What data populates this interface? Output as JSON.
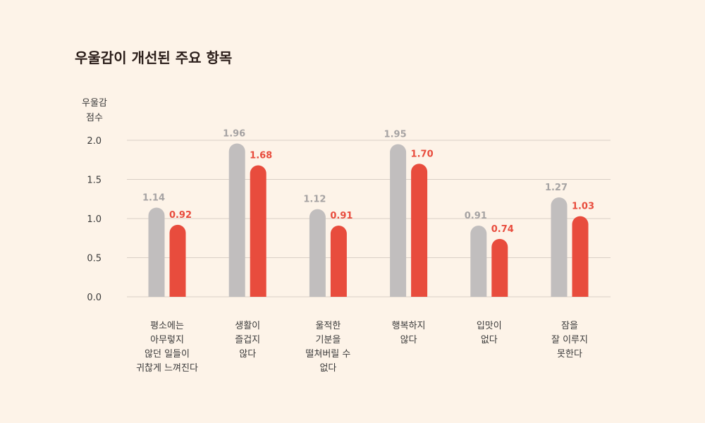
{
  "chart_data": {
    "type": "bar",
    "title": "우울감이 개선된 주요 항목",
    "ylabel": [
      "우울감",
      "점수"
    ],
    "ylim": [
      0,
      2.0
    ],
    "yticks": [
      "2.0",
      "1.5",
      "1.0",
      "0.5",
      "0.0"
    ],
    "grid": true,
    "categories": [
      [
        "평소에는",
        "아무렇지",
        "않던 일들이",
        "귀찮게 느껴진다"
      ],
      [
        "생활이",
        "즐겁지",
        "않다"
      ],
      [
        "울적한",
        "기분을",
        "떨쳐버릴 수",
        "없다"
      ],
      [
        "행복하지",
        "않다"
      ],
      [
        "입맛이",
        "없다"
      ],
      [
        "잠을",
        "잘 이루지",
        "못한다"
      ]
    ],
    "series": [
      {
        "values": [
          1.14,
          1.96,
          1.12,
          1.95,
          0.91,
          1.27
        ],
        "labels": [
          "1.14",
          "1.96",
          "1.12",
          "1.95",
          "0.91",
          "1.27"
        ],
        "color": "#c1bebe",
        "label_color": "#a6a3a3"
      },
      {
        "values": [
          0.92,
          1.68,
          0.91,
          1.7,
          0.74,
          1.03
        ],
        "labels": [
          "0.92",
          "1.68",
          "0.91",
          "1.70",
          "0.74",
          "1.03"
        ],
        "color": "#e84c3d",
        "label_color": "#e84c3d"
      }
    ]
  }
}
